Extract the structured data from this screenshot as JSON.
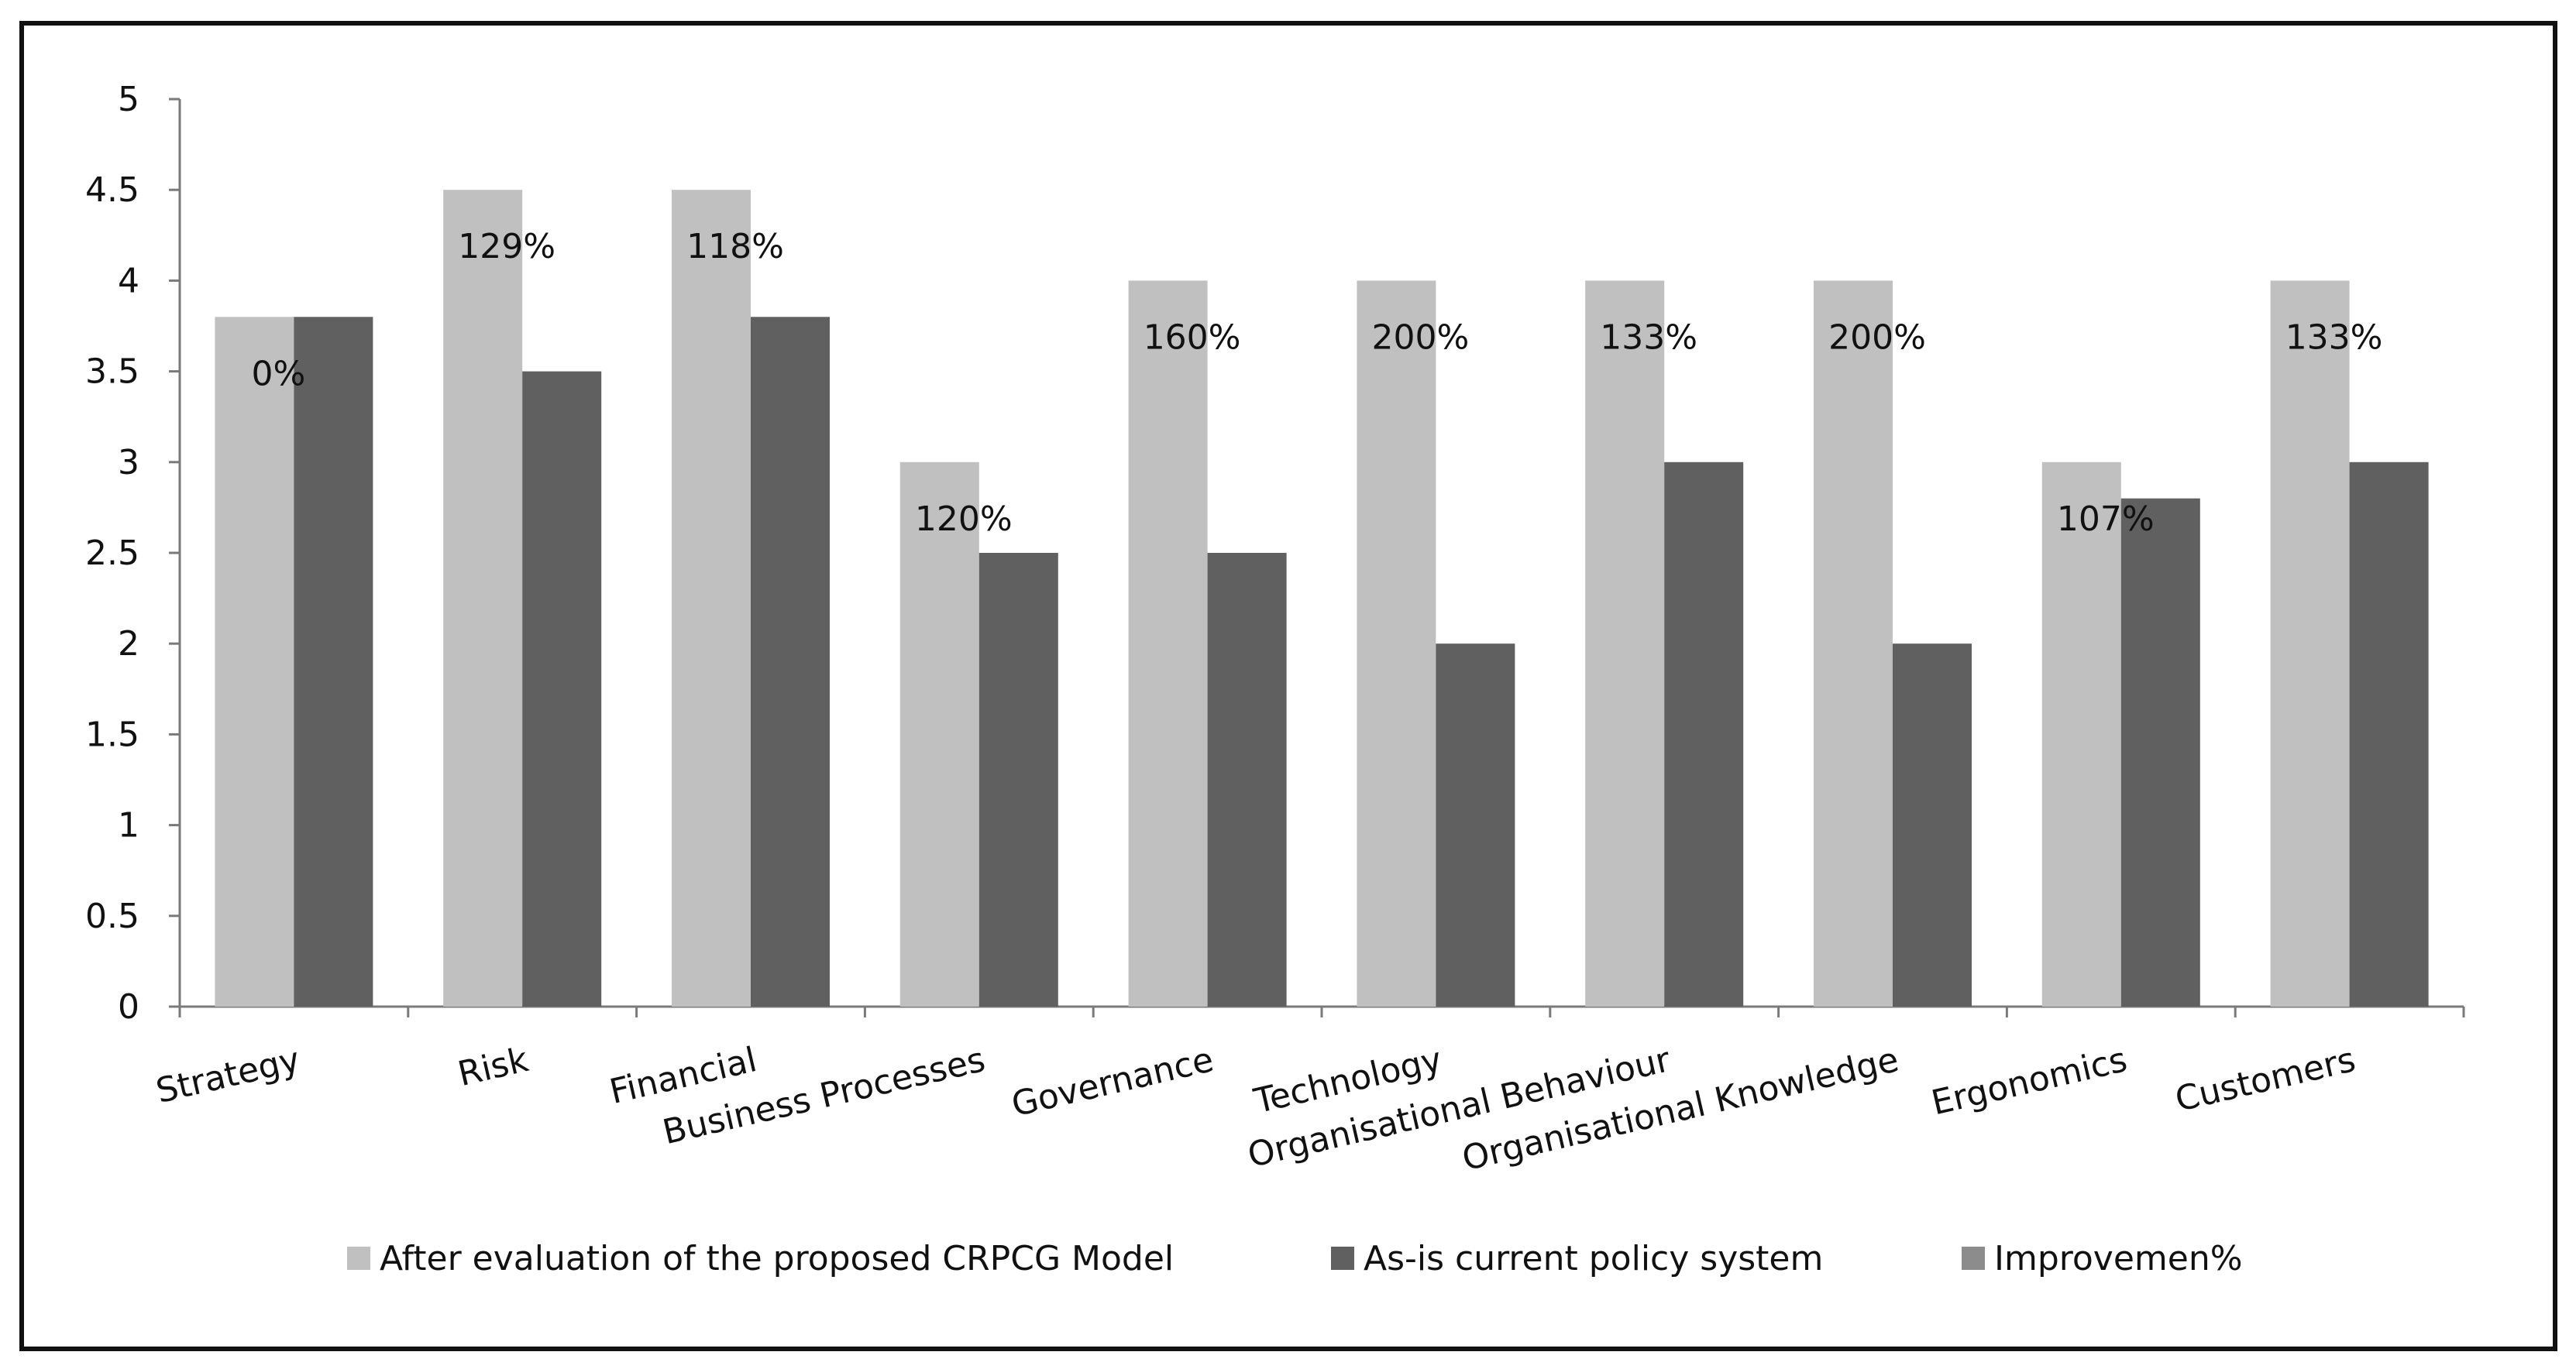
{
  "chart_data": {
    "type": "bar",
    "title": "",
    "xlabel": "",
    "ylabel": "",
    "ylim": [
      0,
      5
    ],
    "yticks": [
      "0",
      "0.5",
      "1",
      "1.5",
      "2",
      "2.5",
      "3",
      "3.5",
      "4",
      "4.5",
      "5"
    ],
    "grid": false,
    "legend_position": "bottom",
    "categories": [
      "Strategy",
      "Risk",
      "Financial",
      "Business Processes",
      "Governance",
      "Technology",
      "Organisational Behaviour",
      "Organisational Knowledge",
      "Ergonomics",
      "Customers"
    ],
    "series": [
      {
        "name": "After evaluation of the proposed CRPCG Model",
        "color": "#c0c0c0",
        "values": [
          3.8,
          4.5,
          4.5,
          3.0,
          4.0,
          4.0,
          4.0,
          4.0,
          3.0,
          4.0
        ]
      },
      {
        "name": "As-is current policy system",
        "color": "#606060",
        "values": [
          3.8,
          3.5,
          3.8,
          2.5,
          2.5,
          2.0,
          3.0,
          2.0,
          2.8,
          3.0
        ]
      },
      {
        "name": "Improvemen%",
        "color": "#8c8c8c",
        "values": [
          0,
          129,
          118,
          120,
          160,
          200,
          133,
          200,
          107,
          133
        ],
        "labels": [
          "0%",
          "129%",
          "118%",
          "120%",
          "160%",
          "200%",
          "133%",
          "200%",
          "107%",
          "133%"
        ]
      }
    ]
  }
}
